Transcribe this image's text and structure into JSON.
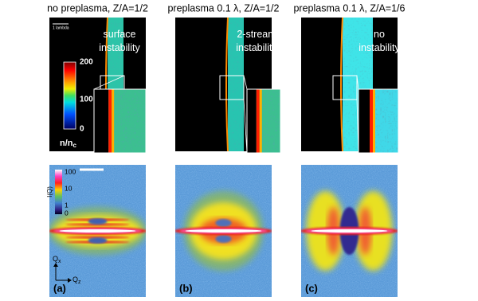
{
  "columns": [
    {
      "title": "no preplasma, Z/A=1/2",
      "density_label": [
        "surface",
        "instability"
      ],
      "panel_label": "(a)"
    },
    {
      "title": "preplasma 0.1 λ, Z/A=1/2",
      "density_label": [
        "2-stream",
        "instability"
      ],
      "panel_label": "(b)"
    },
    {
      "title": "preplasma 0.1 λ, Z/A=1/6",
      "density_label": [
        "no",
        "instability"
      ],
      "panel_label": "(c)"
    }
  ],
  "scale_label": "1 lambda",
  "density_colorbar": {
    "ticks": [
      "200",
      "100",
      "0"
    ],
    "label": "n/n",
    "label_sub": "c"
  },
  "intensity_colorbar": {
    "ticks": [
      "100",
      "10",
      "1",
      "0"
    ],
    "label": "I(Q)"
  },
  "axes": {
    "x": "Q",
    "x_sub": "x",
    "z": "Q",
    "z_sub": "z"
  }
}
